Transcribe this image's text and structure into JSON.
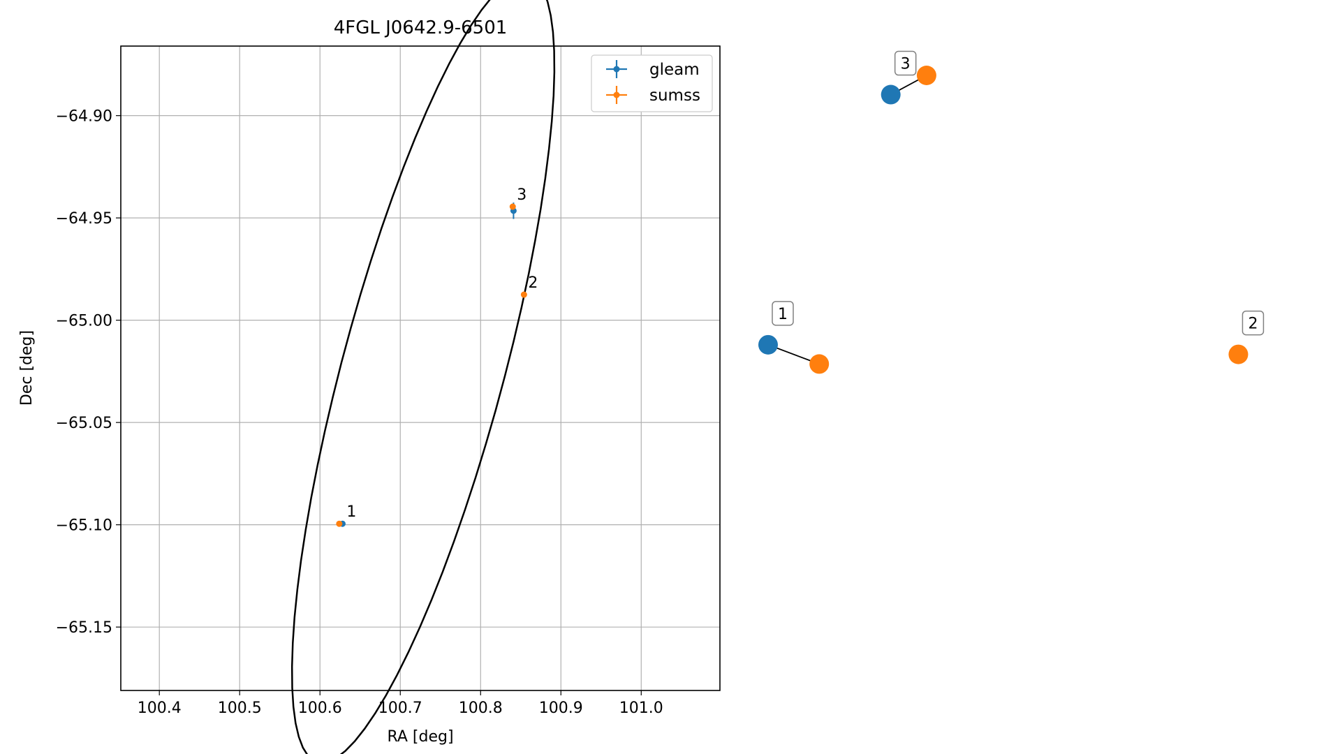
{
  "chart_data": {
    "type": "scatter",
    "title": "4FGL J0642.9-6501",
    "xlabel": "RA [deg]",
    "ylabel": "Dec [deg]",
    "xlim": [
      100.352,
      101.098
    ],
    "ylim": [
      -65.181,
      -64.866
    ],
    "xticks": [
      100.4,
      100.5,
      100.6,
      100.7,
      100.8,
      100.9,
      101.0
    ],
    "xtick_labels": [
      "100.4",
      "100.5",
      "100.6",
      "100.7",
      "100.8",
      "100.9",
      "101.0"
    ],
    "yticks": [
      -64.9,
      -64.95,
      -65.0,
      -65.05,
      -65.1,
      -65.15
    ],
    "ytick_labels": [
      "−64.90",
      "−64.95",
      "−65.00",
      "−65.05",
      "−65.10",
      "−65.15"
    ],
    "grid": true,
    "legend": {
      "placement": "top-right",
      "entries": [
        "gleam",
        "sumss"
      ]
    },
    "series": [
      {
        "name": "gleam",
        "color": "#1f77b4",
        "points": [
          {
            "label": "1",
            "x": 100.628,
            "y": -65.0995,
            "yerr": 0.001
          },
          {
            "label": "3",
            "x": 100.841,
            "y": -64.9465,
            "yerr": 0.004
          }
        ]
      },
      {
        "name": "sumss",
        "color": "#ff7f0e",
        "points": [
          {
            "label": "1",
            "x": 100.624,
            "y": -65.0995
          },
          {
            "label": "2",
            "x": 100.854,
            "y": -64.9875
          },
          {
            "label": "3",
            "x": 100.84,
            "y": -64.9445
          }
        ]
      }
    ],
    "ellipse": {
      "center": [
        100.7285,
        -65.024
      ],
      "semi_axes_deg": [
        0.238,
        0.084
      ],
      "rotation_deg": 51,
      "color": "#000000"
    },
    "network": {
      "nodes": [
        {
          "label": "1",
          "color": "#ff7f0e",
          "position": [
            0.1,
            0.6
          ]
        },
        {
          "label": "1",
          "color": "#1f77b4",
          "position": [
            0.0,
            0.56
          ],
          "labeled": true
        },
        {
          "label": "2",
          "color": "#ff7f0e",
          "position": [
            0.92,
            0.58
          ],
          "labeled": true
        },
        {
          "label": "3",
          "color": "#ff7f0e",
          "position": [
            0.31,
            0.0
          ]
        },
        {
          "label": "3",
          "color": "#1f77b4",
          "position": [
            0.24,
            0.04
          ],
          "labeled": true
        }
      ],
      "edges": [
        [
          0,
          1
        ],
        [
          3,
          4
        ]
      ]
    }
  }
}
